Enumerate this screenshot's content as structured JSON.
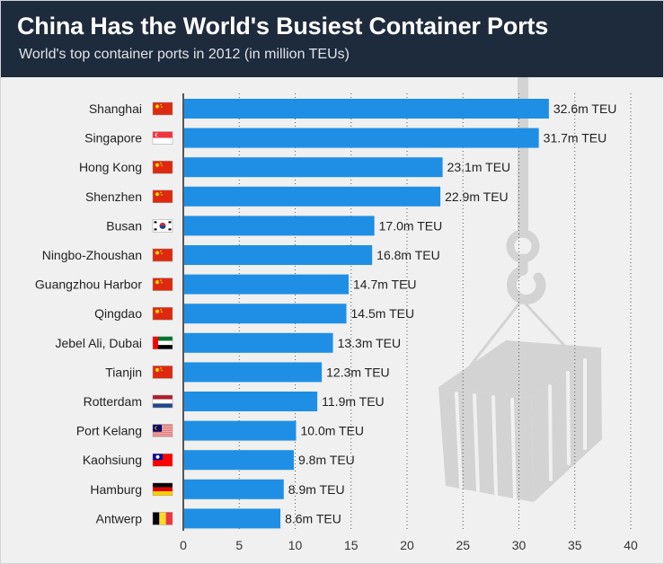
{
  "header": {
    "title": "China Has the World's Busiest Container Ports",
    "subtitle": "World's top container ports in 2012 (in million TEUs)"
  },
  "colors": {
    "header_bg": "#1e2b3c",
    "bar": "#1f8fe5",
    "background": "#f0f0f0",
    "illustration": "#d3d3d3"
  },
  "chart_data": {
    "type": "bar",
    "orientation": "horizontal",
    "title": "China Has the World's Busiest Container Ports",
    "subtitle": "World's top container ports in 2012 (in million TEUs)",
    "categories": [
      "Shanghai",
      "Singapore",
      "Hong Kong",
      "Shenzhen",
      "Busan",
      "Ningbo-Zhoushan",
      "Guangzhou Harbor",
      "Qingdao",
      "Jebel Ali, Dubai",
      "Tianjin",
      "Rotterdam",
      "Port Kelang",
      "Kaohsiung",
      "Hamburg",
      "Antwerp"
    ],
    "values": [
      32.6,
      31.7,
      23.1,
      22.9,
      17.0,
      16.8,
      14.7,
      14.5,
      13.3,
      12.3,
      11.9,
      10.0,
      9.8,
      8.9,
      8.6
    ],
    "data_labels": [
      "32.6m TEU",
      "31.7m TEU",
      "23.1m TEU",
      "22.9m TEU",
      "17.0m TEU",
      "16.8m TEU",
      "14.7m TEU",
      "14.5m TEU",
      "13.3m TEU",
      "12.3m TEU",
      "11.9m TEU",
      "10.0m TEU",
      "9.8m TEU",
      "8.9m TEU",
      "8.6m TEU"
    ],
    "flags": [
      "china",
      "singapore",
      "china",
      "china",
      "south-korea",
      "china",
      "china",
      "china",
      "uae",
      "china",
      "netherlands",
      "malaysia",
      "taiwan",
      "germany",
      "belgium"
    ],
    "xticks": [
      "0",
      "5",
      "10",
      "15",
      "20",
      "25",
      "30",
      "35",
      "40"
    ],
    "xlim": [
      0,
      40
    ],
    "xlabel": "",
    "ylabel": "",
    "grid": "vertical-dotted",
    "legend": "none"
  }
}
